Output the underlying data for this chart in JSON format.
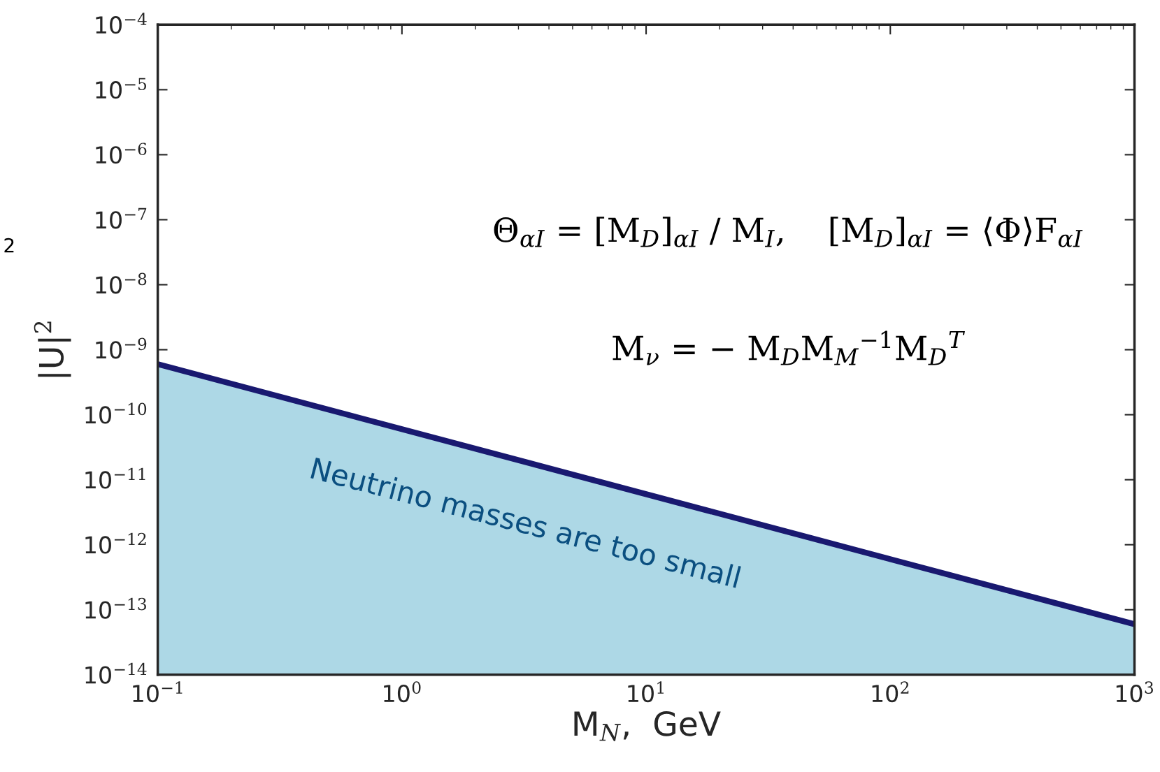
{
  "chart_data": {
    "type": "area",
    "xlabel": "M$_{N}$,  GeV",
    "ylabel": "|U|$^{2}$",
    "log": "xy",
    "x": [
      0.1,
      1000
    ],
    "series": [
      {
        "color": "#191970",
        "values": [
          6e-10,
          6e-14
        ]
      }
    ],
    "xlim": [
      0.1,
      1000
    ],
    "ylim": [
      1e-14,
      0.0001
    ],
    "xticks": [
      {
        "value": 0.1,
        "label": "10$^{−1}$"
      },
      {
        "value": 1,
        "label": "10$^{0}$"
      },
      {
        "value": 10,
        "label": "10$^{1}$"
      },
      {
        "value": 100,
        "label": "10$^{2}$"
      },
      {
        "value": 1000,
        "label": "10$^{3}$"
      }
    ],
    "yticks": [
      {
        "value": 1e-14,
        "label": "10$^{−14}$"
      },
      {
        "value": 1e-13,
        "label": "10$^{−13}$"
      },
      {
        "value": 1e-12,
        "label": "10$^{−12}$"
      },
      {
        "value": 1e-11,
        "label": "10$^{−11}$"
      },
      {
        "value": 1e-10,
        "label": "10$^{−10}$"
      },
      {
        "value": 1e-09,
        "label": "10$^{−9}$"
      },
      {
        "value": 1e-08,
        "label": "10$^{−8}$"
      },
      {
        "value": 1e-07,
        "label": "10$^{−7}$"
      },
      {
        "value": 1e-06,
        "label": "10$^{−6}$"
      },
      {
        "value": 1e-05,
        "label": "10$^{−5}$"
      },
      {
        "value": 0.0001,
        "label": "10$^{−4}$"
      }
    ],
    "grid": false,
    "legend": false,
    "annotations": [
      "Θ$_{αI}$ = [M$_{D}$]$_{αI}$ / M$_{I}$,    [M$_{D}$]$_{αI}$ = ⟨Φ⟩F$_{αI}$",
      "M$_{ν}$ = − M$_{D}$M$_{M}$$^{−1}$M$_{D}$$^{T}$",
      "Neutrino masses are too small",
      "2"
    ]
  }
}
